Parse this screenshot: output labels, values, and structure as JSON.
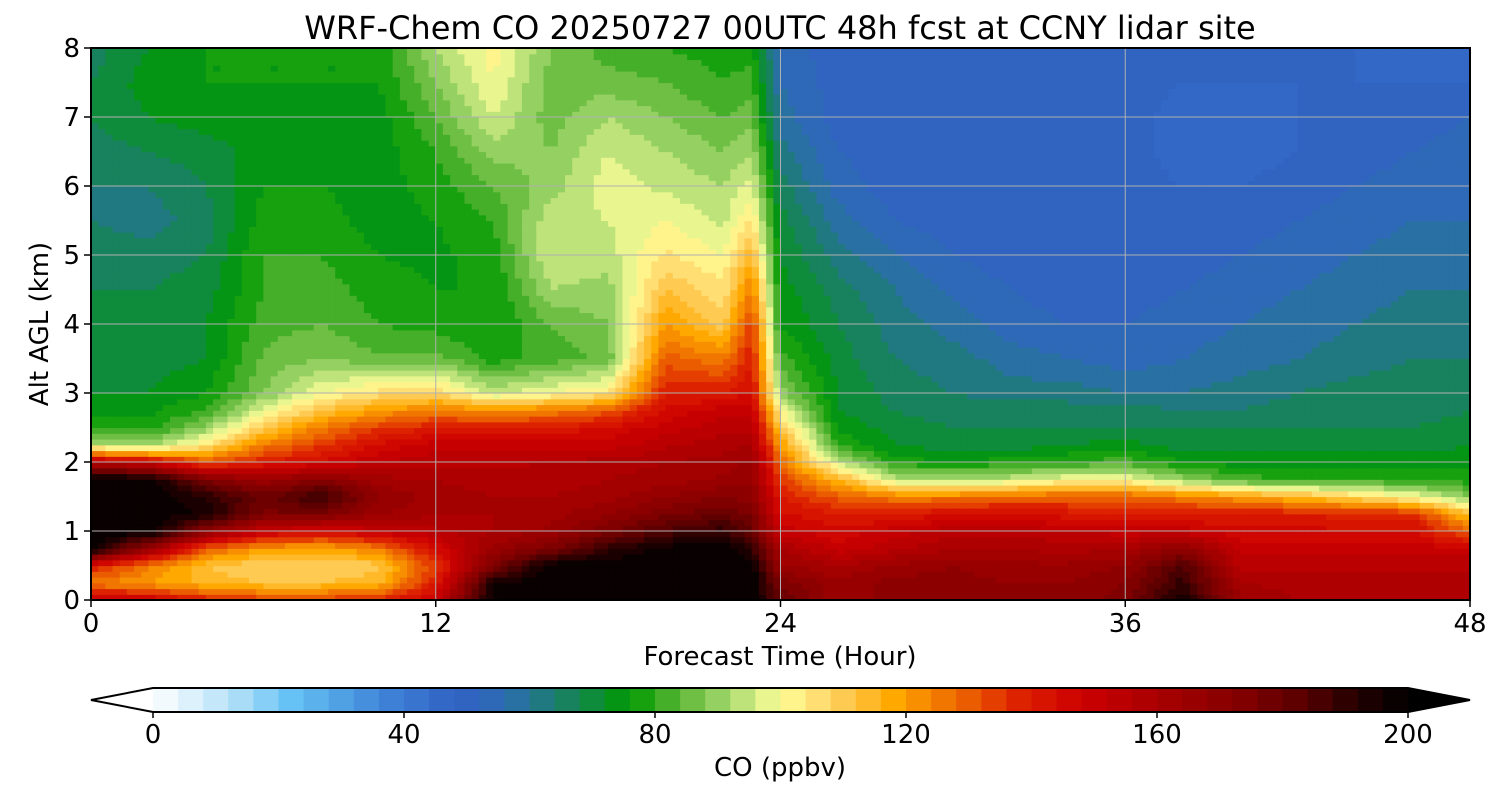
{
  "chart_data": {
    "type": "heatmap",
    "title": "WRF-Chem CO  20250727 00UTC 48h fcst at CCNY lidar site",
    "xlabel": "Forecast Time (Hour)",
    "ylabel": "Alt AGL (km)",
    "xlim": [
      0,
      48
    ],
    "ylim": [
      0,
      8
    ],
    "xticks": [
      0,
      12,
      24,
      36,
      48
    ],
    "yticks": [
      0,
      1,
      2,
      3,
      4,
      5,
      6,
      7,
      8
    ],
    "grid": true,
    "colorbar": {
      "label": "CO  (ppbv)",
      "orientation": "horizontal",
      "min": 0,
      "max": 200,
      "step": 4,
      "ticks": [
        0,
        40,
        80,
        120,
        160,
        200
      ],
      "extend": "both",
      "anchors": [
        {
          "value": 0,
          "color": "#ffffff"
        },
        {
          "value": 12,
          "color": "#b8e2f8"
        },
        {
          "value": 22,
          "color": "#66c2f4"
        },
        {
          "value": 36,
          "color": "#3f86d8"
        },
        {
          "value": 48,
          "color": "#3262c4"
        },
        {
          "value": 56,
          "color": "#2d6bb4"
        },
        {
          "value": 64,
          "color": "#1b7d6e"
        },
        {
          "value": 70,
          "color": "#0f8b3c"
        },
        {
          "value": 76,
          "color": "#009a00"
        },
        {
          "value": 84,
          "color": "#5cb637"
        },
        {
          "value": 92,
          "color": "#a8da70"
        },
        {
          "value": 100,
          "color": "#ffff99"
        },
        {
          "value": 108,
          "color": "#ffd366"
        },
        {
          "value": 118,
          "color": "#ffa800"
        },
        {
          "value": 128,
          "color": "#ee6a00"
        },
        {
          "value": 138,
          "color": "#dd2200"
        },
        {
          "value": 148,
          "color": "#cc0000"
        },
        {
          "value": 160,
          "color": "#a80000"
        },
        {
          "value": 172,
          "color": "#880000"
        },
        {
          "value": 184,
          "color": "#550000"
        },
        {
          "value": 192,
          "color": "#220000"
        },
        {
          "value": 200,
          "color": "#000000"
        }
      ]
    },
    "x": [
      0,
      2,
      4,
      6,
      8,
      10,
      12,
      14,
      16,
      18,
      20,
      22,
      23,
      24,
      26,
      28,
      30,
      32,
      34,
      36,
      38,
      40,
      42,
      44,
      46,
      48
    ],
    "y": [
      0,
      0.25,
      0.5,
      0.75,
      1,
      1.25,
      1.5,
      1.75,
      2,
      2.25,
      2.5,
      2.75,
      3,
      3.5,
      4,
      4.5,
      5,
      5.5,
      6,
      6.5,
      7,
      7.5,
      8
    ],
    "z": [
      [
        150,
        150,
        140,
        135,
        135,
        138,
        150,
        200,
        200,
        200,
        200,
        200,
        200,
        180,
        165,
        170,
        170,
        168,
        168,
        175,
        195,
        165,
        160,
        160,
        160,
        160
      ],
      [
        125,
        120,
        115,
        112,
        112,
        115,
        140,
        195,
        200,
        200,
        200,
        200,
        200,
        175,
        165,
        170,
        170,
        168,
        168,
        172,
        190,
        160,
        158,
        158,
        158,
        158
      ],
      [
        140,
        125,
        112,
        108,
        108,
        110,
        135,
        175,
        200,
        200,
        200,
        200,
        200,
        165,
        160,
        165,
        168,
        165,
        165,
        168,
        185,
        155,
        155,
        155,
        155,
        155
      ],
      [
        200,
        165,
        130,
        120,
        118,
        125,
        145,
        165,
        175,
        190,
        198,
        200,
        190,
        160,
        150,
        155,
        160,
        160,
        158,
        160,
        170,
        150,
        150,
        150,
        150,
        150
      ],
      [
        200,
        200,
        170,
        150,
        145,
        150,
        155,
        160,
        165,
        175,
        185,
        190,
        180,
        150,
        145,
        150,
        155,
        155,
        152,
        150,
        150,
        145,
        145,
        145,
        145,
        128
      ],
      [
        200,
        200,
        195,
        175,
        175,
        165,
        160,
        160,
        162,
        168,
        175,
        180,
        175,
        145,
        140,
        140,
        145,
        145,
        142,
        140,
        140,
        140,
        140,
        138,
        138,
        112
      ],
      [
        200,
        200,
        192,
        178,
        190,
        168,
        162,
        160,
        160,
        162,
        168,
        172,
        170,
        140,
        130,
        125,
        125,
        128,
        130,
        130,
        125,
        120,
        115,
        108,
        100,
        88
      ],
      [
        200,
        200,
        175,
        165,
        172,
        162,
        160,
        158,
        158,
        160,
        162,
        165,
        166,
        135,
        115,
        95,
        92,
        95,
        100,
        100,
        90,
        82,
        80,
        80,
        80,
        78
      ],
      [
        155,
        150,
        130,
        140,
        145,
        152,
        155,
        155,
        156,
        158,
        160,
        162,
        165,
        128,
        95,
        78,
        76,
        78,
        80,
        82,
        76,
        74,
        74,
        74,
        74,
        74
      ],
      [
        95,
        90,
        105,
        125,
        135,
        145,
        150,
        150,
        150,
        150,
        155,
        158,
        160,
        120,
        80,
        72,
        70,
        70,
        72,
        74,
        70,
        70,
        70,
        70,
        70,
        72
      ],
      [
        78,
        78,
        90,
        110,
        125,
        135,
        140,
        140,
        140,
        145,
        150,
        155,
        155,
        112,
        75,
        70,
        68,
        68,
        68,
        68,
        68,
        68,
        68,
        68,
        68,
        70
      ],
      [
        74,
        75,
        80,
        98,
        112,
        120,
        125,
        122,
        125,
        130,
        145,
        150,
        150,
        100,
        72,
        68,
        66,
        66,
        66,
        66,
        64,
        64,
        66,
        66,
        66,
        68
      ],
      [
        72,
        72,
        76,
        88,
        100,
        106,
        108,
        95,
        100,
        105,
        140,
        140,
        145,
        90,
        72,
        66,
        64,
        62,
        62,
        60,
        60,
        62,
        64,
        66,
        66,
        66
      ],
      [
        70,
        70,
        72,
        85,
        88,
        85,
        86,
        78,
        82,
        85,
        130,
        125,
        140,
        82,
        70,
        64,
        62,
        58,
        56,
        54,
        56,
        58,
        60,
        62,
        64,
        64
      ],
      [
        70,
        70,
        72,
        82,
        84,
        80,
        78,
        76,
        84,
        88,
        120,
        110,
        135,
        76,
        68,
        62,
        58,
        54,
        52,
        52,
        54,
        56,
        58,
        60,
        62,
        62
      ],
      [
        68,
        68,
        70,
        80,
        82,
        78,
        76,
        76,
        92,
        90,
        112,
        105,
        125,
        74,
        66,
        60,
        55,
        52,
        50,
        50,
        52,
        54,
        56,
        58,
        60,
        60
      ],
      [
        66,
        66,
        68,
        80,
        80,
        76,
        75,
        78,
        96,
        94,
        105,
        100,
        115,
        72,
        62,
        56,
        52,
        50,
        50,
        50,
        50,
        52,
        54,
        56,
        58,
        58
      ],
      [
        64,
        62,
        66,
        78,
        78,
        74,
        76,
        80,
        95,
        96,
        100,
        95,
        105,
        70,
        58,
        52,
        50,
        50,
        50,
        50,
        50,
        50,
        52,
        54,
        56,
        56
      ],
      [
        64,
        64,
        68,
        76,
        76,
        74,
        78,
        84,
        90,
        98,
        95,
        92,
        98,
        66,
        54,
        50,
        50,
        50,
        50,
        50,
        48,
        48,
        50,
        52,
        54,
        56
      ],
      [
        66,
        68,
        70,
        74,
        74,
        74,
        80,
        90,
        88,
        96,
        92,
        88,
        92,
        62,
        52,
        50,
        50,
        50,
        50,
        50,
        46,
        46,
        48,
        50,
        52,
        54
      ],
      [
        68,
        72,
        74,
        74,
        74,
        74,
        84,
        96,
        86,
        92,
        88,
        84,
        86,
        58,
        50,
        50,
        50,
        50,
        50,
        50,
        46,
        46,
        48,
        50,
        50,
        52
      ],
      [
        68,
        74,
        76,
        76,
        76,
        76,
        88,
        100,
        86,
        86,
        84,
        80,
        82,
        56,
        50,
        50,
        50,
        50,
        50,
        50,
        48,
        48,
        48,
        48,
        48,
        48
      ],
      [
        66,
        72,
        76,
        76,
        76,
        76,
        92,
        102,
        88,
        82,
        80,
        78,
        78,
        54,
        50,
        50,
        50,
        50,
        50,
        50,
        50,
        48,
        48,
        48,
        46,
        46
      ]
    ]
  }
}
